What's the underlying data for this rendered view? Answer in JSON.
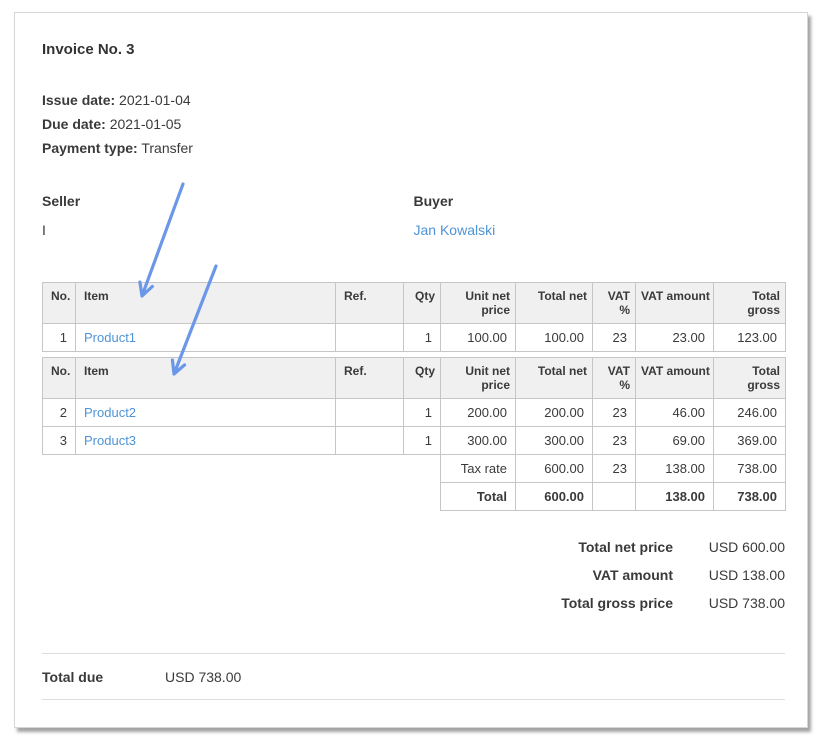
{
  "invoice": {
    "title": "Invoice No. 3",
    "meta": [
      {
        "label": "Issue date:",
        "value": "2021-01-04"
      },
      {
        "label": "Due date:",
        "value": "2021-01-05"
      },
      {
        "label": "Payment type:",
        "value": "Transfer"
      }
    ],
    "seller": {
      "heading": "Seller",
      "name": "I"
    },
    "buyer": {
      "heading": "Buyer",
      "name": "Jan Kowalski"
    }
  },
  "table_headers": [
    "No.",
    "Item",
    "Ref.",
    "Qty",
    "Unit net price",
    "Total net",
    "VAT %",
    "VAT amount",
    "Total gross"
  ],
  "tables": [
    {
      "rows": [
        [
          "1",
          "Product1",
          "",
          "1",
          "100.00",
          "100.00",
          "23",
          "23.00",
          "123.00"
        ]
      ],
      "summary": []
    },
    {
      "rows": [
        [
          "2",
          "Product2",
          "",
          "1",
          "200.00",
          "200.00",
          "23",
          "46.00",
          "246.00"
        ],
        [
          "3",
          "Product3",
          "",
          "1",
          "300.00",
          "300.00",
          "23",
          "69.00",
          "369.00"
        ]
      ],
      "summary": [
        {
          "cells": [
            "Tax rate",
            "600.00",
            "23",
            "138.00",
            "738.00"
          ],
          "bold": false
        },
        {
          "cells": [
            "Total",
            "600.00",
            "",
            "138.00",
            "738.00"
          ],
          "bold": true
        }
      ]
    }
  ],
  "totals": [
    {
      "label": "Total net price",
      "value": "USD 600.00"
    },
    {
      "label": "VAT amount",
      "value": "USD 138.00"
    },
    {
      "label": "Total gross price",
      "value": "USD 738.00"
    }
  ],
  "total_due": {
    "label": "Total due",
    "value": "USD 738.00"
  },
  "colors": {
    "link": "#4e94d6",
    "annotation_arrow": "#6b97e8",
    "table_header_bg": "#f0f0f0",
    "table_border": "#c6c6c6"
  }
}
